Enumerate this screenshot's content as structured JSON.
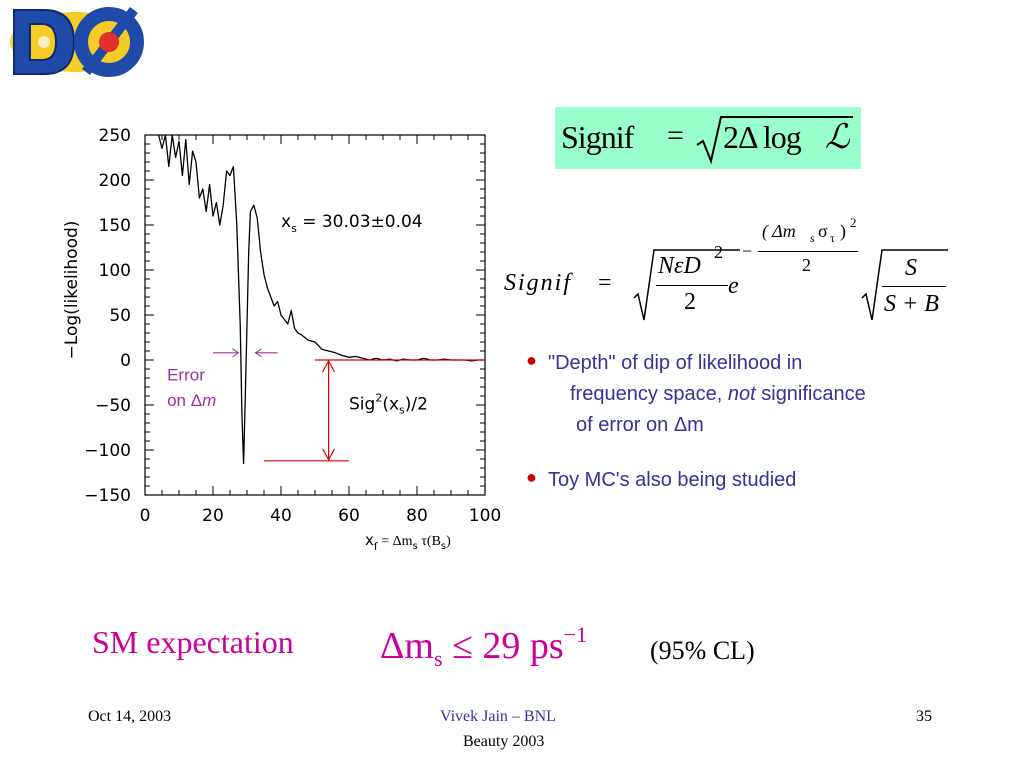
{
  "logo": {
    "text": "DØ",
    "colors": {
      "blue": "#1f4aa8",
      "red": "#e0302a",
      "yellow": "#f3c400"
    }
  },
  "chart_data": {
    "type": "line",
    "ylabel": "−Log(likelihood)",
    "xlabel_prefix": "x",
    "xlabel_sub": "ſ",
    "xlabel_def": "= Δm",
    "xlabel_def_sub": "s",
    "xlabel_def_tail": "τ(B",
    "xlabel_def_tail_sub": "s",
    "xlabel_def_close": ")",
    "xlim": [
      0,
      100
    ],
    "ylim": [
      -150,
      250
    ],
    "xticks": [
      "0",
      "20",
      "40",
      "60",
      "80",
      "100"
    ],
    "xtick_values": [
      0,
      20,
      40,
      60,
      80,
      100
    ],
    "yticks": [
      "250",
      "200",
      "150",
      "100",
      "50",
      "0",
      "−50",
      "−100",
      "−150"
    ],
    "ytick_values": [
      250,
      200,
      150,
      100,
      50,
      0,
      -50,
      -100,
      -150
    ],
    "annotation_xs": "x",
    "annotation_xs_sub": "s",
    "annotation_xs_value": " = 30.03±0.04",
    "annotation_sig": "Sig",
    "annotation_sig_sup": "2",
    "annotation_sig_tail": "(x",
    "annotation_sig_sub": "s",
    "annotation_sig_end": ")/2",
    "error_label_1": "Error",
    "error_label_2": "on Δ",
    "error_label_m": "m",
    "series": [
      {
        "x": [
          4,
          5,
          6,
          7,
          8,
          9,
          10,
          11,
          12,
          13,
          14,
          15,
          16,
          17,
          18,
          19,
          20,
          21,
          22,
          23,
          24,
          25,
          26,
          27,
          28,
          28.5,
          29,
          29.5,
          30,
          30.5,
          31,
          32,
          33,
          34,
          35,
          36,
          37,
          38,
          39,
          40,
          41,
          42,
          43,
          44,
          45,
          46,
          47,
          48,
          50,
          52,
          54,
          56,
          58,
          60,
          62,
          64,
          66,
          68,
          70,
          72,
          74,
          76,
          78,
          80,
          82,
          84,
          86,
          88,
          90,
          92,
          94,
          96,
          98,
          100
        ],
        "y": [
          250,
          235,
          250,
          215,
          250,
          225,
          243,
          205,
          245,
          195,
          232,
          220,
          180,
          190,
          165,
          195,
          160,
          175,
          150,
          172,
          210,
          205,
          215,
          150,
          40,
          -60,
          -115,
          -40,
          40,
          120,
          165,
          172,
          158,
          120,
          95,
          80,
          70,
          60,
          65,
          50,
          45,
          40,
          55,
          35,
          30,
          28,
          25,
          22,
          20,
          12,
          10,
          8,
          5,
          3,
          4,
          2,
          0,
          2,
          0,
          1,
          -1,
          1,
          0,
          0,
          2,
          0,
          0,
          1,
          0,
          0,
          0,
          -1,
          0,
          0
        ]
      }
    ]
  },
  "formula1": {
    "lhs": "Signif",
    "eq": "=",
    "rhs_num": "2Δ log",
    "rhs_L": "ℒ"
  },
  "formula2": {
    "lhs": "Signif",
    "eq": "=",
    "num": "NεD",
    "num_sup": "2",
    "den": "2",
    "e": "e",
    "exp_num": "( Δm",
    "exp_num_sub": "s",
    "exp_num_sigma": "σ",
    "exp_num_tau": "τ",
    "exp_num_close": ")",
    "exp_num_sup": "2",
    "exp_den": "2",
    "exp_minus": "−",
    "frac2_num": "S",
    "frac2_den": "S + B"
  },
  "bullets": [
    {
      "line1": "\"Depth\" of dip of likelihood in",
      "line2_a": "frequency space, ",
      "line2_italic": "not",
      "line2_b": " significance",
      "line3": "of error on Δm"
    },
    {
      "line1": "Toy MC's also being studied"
    }
  ],
  "expectation": {
    "label": "SM expectation",
    "formula_a": "Δm",
    "formula_sub": "s",
    "formula_b": " ≤ 29 ps",
    "formula_sup": "−1",
    "cl": "(95% CL)"
  },
  "footer": {
    "date": "Oct 14, 2003",
    "author": "Vivek Jain – BNL",
    "conference": "Beauty 2003",
    "page": "35"
  }
}
